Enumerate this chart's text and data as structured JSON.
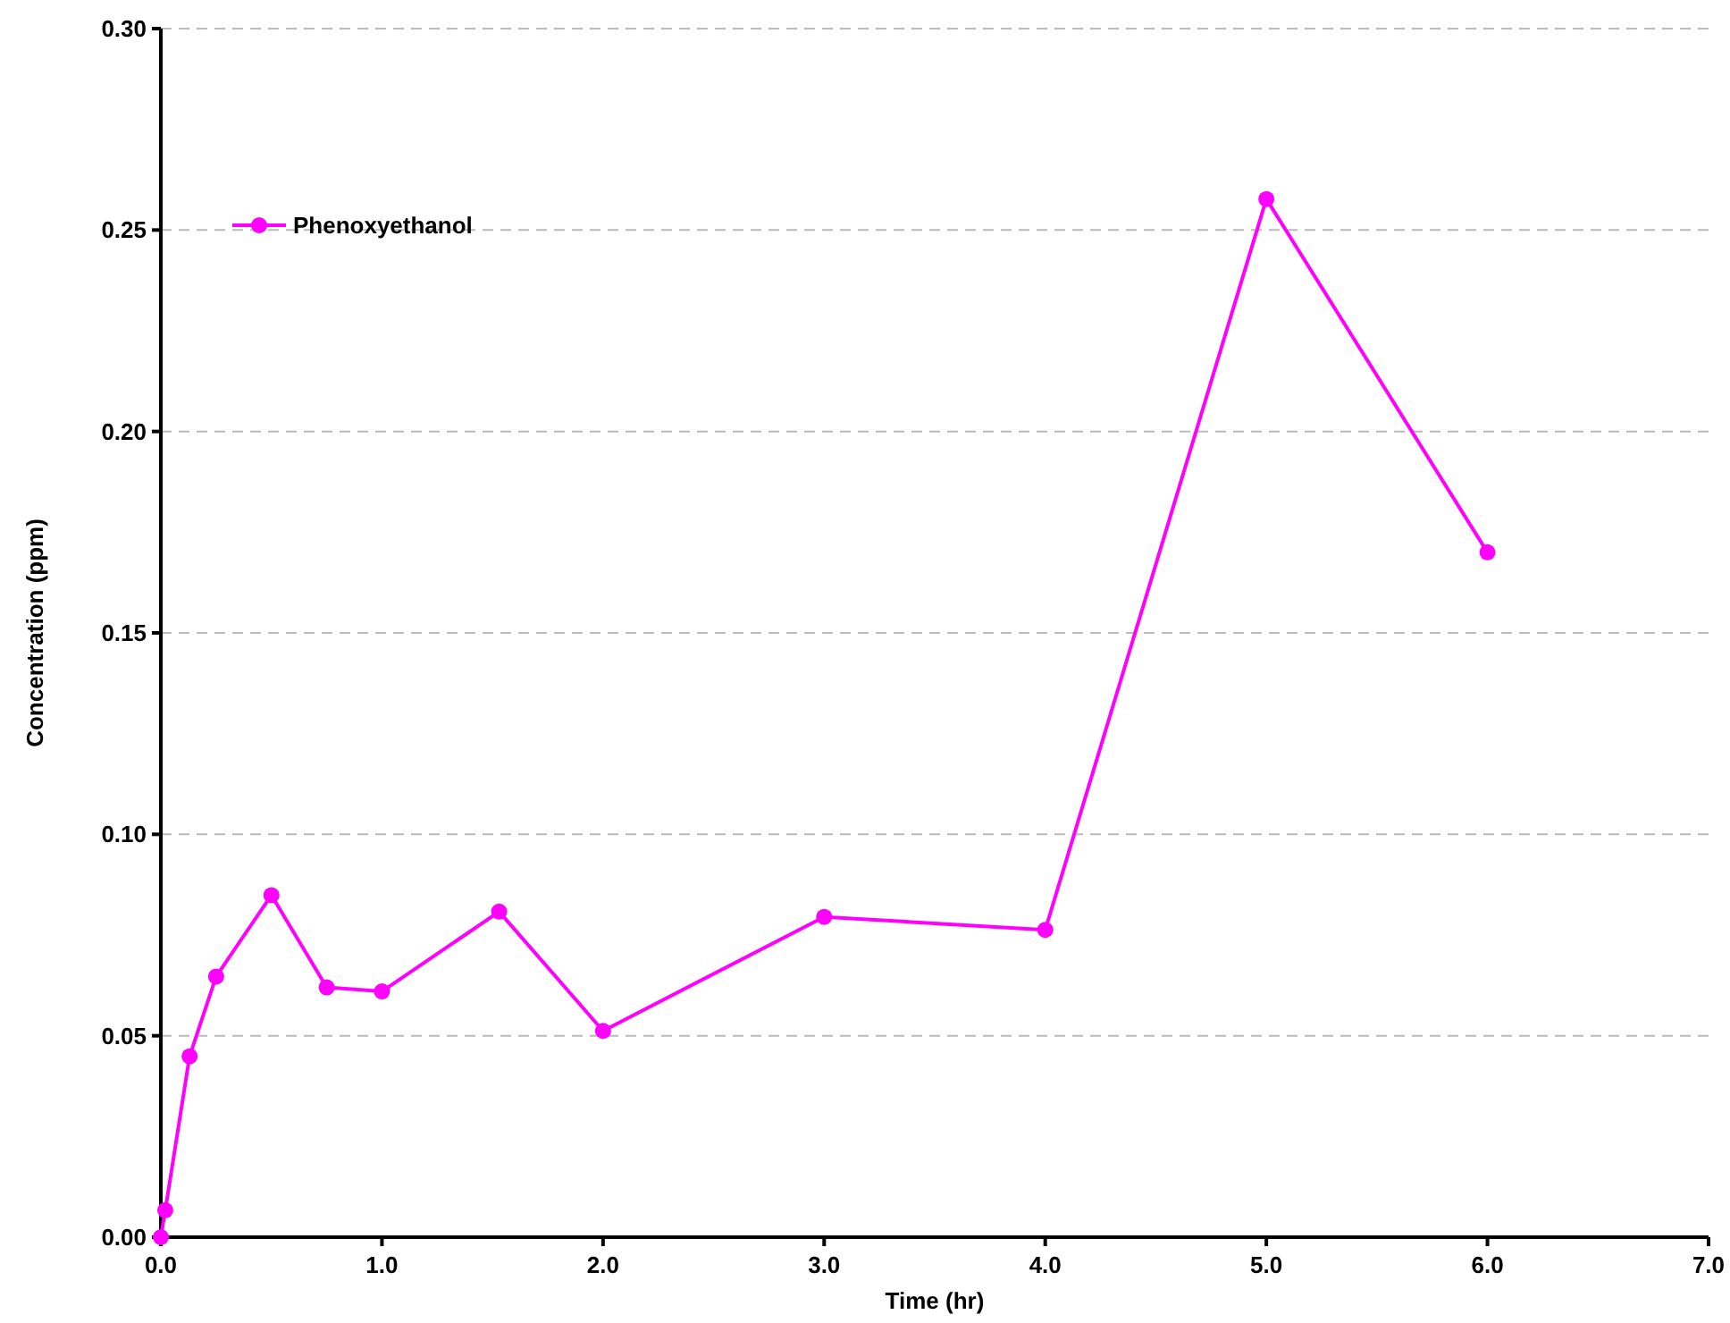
{
  "chart_data": {
    "type": "line",
    "xlabel": "Time (hr)",
    "ylabel": "Concentration (ppm)",
    "series": [
      {
        "name": "Phenoxyethanol",
        "color": "#ff00ff",
        "x": [
          0,
          0.02,
          0.13,
          0.25,
          0.5,
          0.75,
          1.0,
          1.53,
          2.0,
          3.0,
          4.0,
          5.0,
          6.0
        ],
        "values": [
          0,
          0.0067,
          0.0449,
          0.0647,
          0.0849,
          0.062,
          0.061,
          0.0808,
          0.0512,
          0.0795,
          0.0763,
          0.2577,
          0.17
        ]
      }
    ],
    "xlim": [
      0,
      7
    ],
    "xticks": [
      {
        "value": 0,
        "label": "0.0"
      },
      {
        "value": 1,
        "label": "1.0"
      },
      {
        "value": 2,
        "label": "2.0"
      },
      {
        "value": 3,
        "label": "3.0"
      },
      {
        "value": 4,
        "label": "4.0"
      },
      {
        "value": 5,
        "label": "5.0"
      },
      {
        "value": 6,
        "label": "6.0"
      },
      {
        "value": 7,
        "label": "7.0"
      }
    ],
    "ylim": [
      0,
      0.3
    ],
    "yticks": [
      {
        "value": 0,
        "label": "0.00"
      },
      {
        "value": 0.05,
        "label": "0.05"
      },
      {
        "value": 0.1,
        "label": "0.10"
      },
      {
        "value": 0.15,
        "label": "0.15"
      },
      {
        "value": 0.2,
        "label": "0.20"
      },
      {
        "value": 0.25,
        "label": "0.25"
      },
      {
        "value": 0.3,
        "label": "0.30"
      }
    ],
    "grid": "y",
    "legend": "top left",
    "marker": "circle",
    "line_style": "solid"
  }
}
